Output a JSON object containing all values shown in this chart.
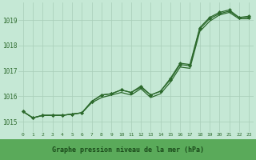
{
  "hours": [
    0,
    1,
    2,
    3,
    4,
    5,
    6,
    7,
    8,
    9,
    10,
    11,
    12,
    13,
    14,
    15,
    16,
    17,
    18,
    19,
    20,
    21,
    22,
    23
  ],
  "line1": [
    1015.4,
    1015.15,
    1015.25,
    1015.25,
    1015.25,
    1015.3,
    1015.35,
    1015.8,
    1016.05,
    1016.1,
    1016.25,
    1016.15,
    1016.35,
    1016.05,
    1016.2,
    1016.65,
    1017.25,
    1017.2,
    1018.65,
    1019.05,
    1019.25,
    1019.35,
    1019.1,
    1019.1
  ],
  "line2": [
    1015.4,
    1015.15,
    1015.25,
    1015.25,
    1015.25,
    1015.3,
    1015.35,
    1015.8,
    1016.05,
    1016.1,
    1016.25,
    1016.15,
    1016.4,
    1016.05,
    1016.2,
    1016.7,
    1017.3,
    1017.25,
    1018.7,
    1019.1,
    1019.3,
    1019.4,
    1019.1,
    1019.15
  ],
  "line3": [
    1015.4,
    1015.15,
    1015.25,
    1015.25,
    1015.25,
    1015.3,
    1015.35,
    1015.75,
    1015.95,
    1016.05,
    1016.15,
    1016.05,
    1016.3,
    1015.95,
    1016.1,
    1016.55,
    1017.15,
    1017.1,
    1018.55,
    1018.95,
    1019.2,
    1019.3,
    1019.05,
    1019.05
  ],
  "line1_markers": [
    0,
    1,
    2,
    3,
    4,
    5,
    6,
    7,
    8,
    9,
    10,
    11,
    12,
    13,
    14,
    15,
    16,
    17,
    18,
    19,
    20,
    21,
    22,
    23
  ],
  "yticks": [
    1015,
    1016,
    1017,
    1018,
    1019
  ],
  "xticks": [
    0,
    1,
    2,
    3,
    4,
    5,
    6,
    7,
    8,
    9,
    10,
    11,
    12,
    13,
    14,
    15,
    16,
    17,
    18,
    19,
    20,
    21,
    22,
    23
  ],
  "ylim": [
    1014.6,
    1019.7
  ],
  "xlim": [
    -0.5,
    23.5
  ],
  "line_color": "#2d6a2d",
  "bg_color": "#c5e8d5",
  "grid_color": "#a8cdb8",
  "xlabel": "Graphe pression niveau de la mer (hPa)",
  "xlabel_color": "#1a4a1a",
  "xlabel_bg": "#5aaa5a",
  "markersize": 2.5,
  "linewidth": 0.9
}
